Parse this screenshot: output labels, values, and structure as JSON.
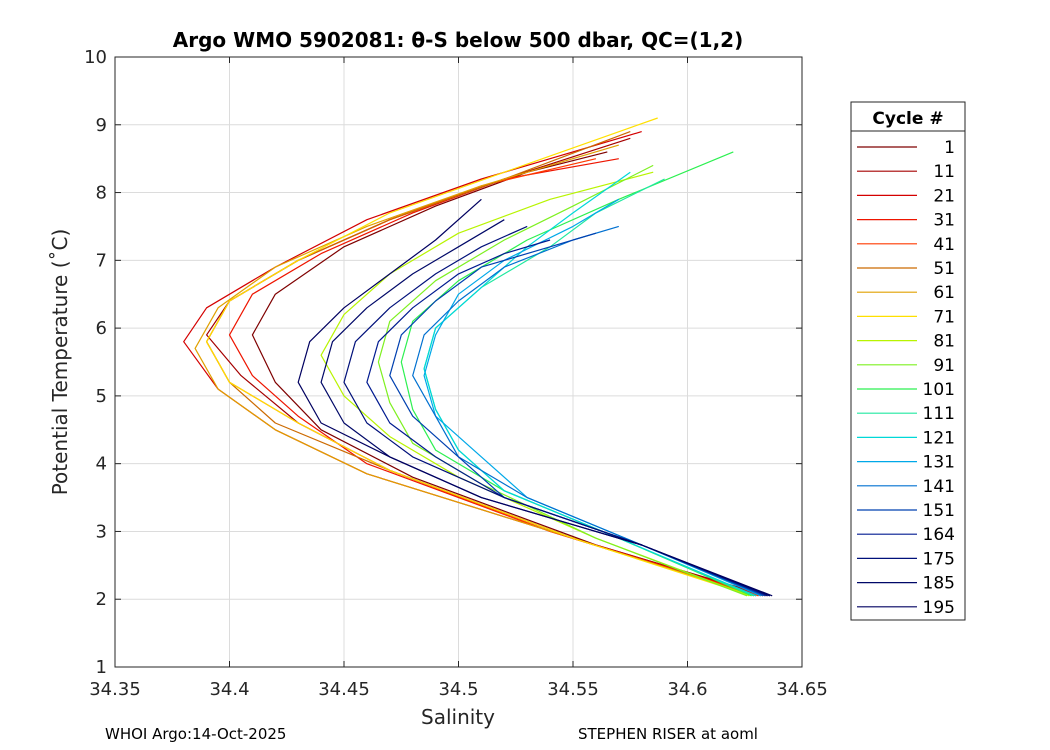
{
  "chart_data": {
    "type": "line",
    "title": "Argo WMO 5902081: θ-S below 500 dbar,  QC=(1,2)",
    "xlabel": "Salinity",
    "ylabel": "Potential Temperature (˚C)",
    "xlim": [
      34.35,
      34.65
    ],
    "ylim": [
      1,
      10
    ],
    "xticks": [
      34.35,
      34.4,
      34.45,
      34.5,
      34.55,
      34.6,
      34.65
    ],
    "xtick_labels": [
      "34.35",
      "34.4",
      "34.45",
      "34.5",
      "34.55",
      "34.6",
      "34.65"
    ],
    "yticks": [
      1,
      2,
      3,
      4,
      5,
      6,
      7,
      8,
      9,
      10
    ],
    "ytick_labels": [
      "1",
      "2",
      "3",
      "4",
      "5",
      "6",
      "7",
      "8",
      "9",
      "10"
    ],
    "grid": true,
    "legend": {
      "title": "Cycle #",
      "position": "outside-right",
      "entries": [
        "1",
        "11",
        "21",
        "31",
        "41",
        "51",
        "61",
        "71",
        "81",
        "91",
        "101",
        "111",
        "121",
        "131",
        "141",
        "151",
        "164",
        "175",
        "185",
        "195"
      ],
      "colors": [
        "#7f0000",
        "#a50000",
        "#d40000",
        "#ee1500",
        "#ff3a00",
        "#cc6a00",
        "#e0a000",
        "#ffe000",
        "#b8f400",
        "#7ef020",
        "#2cf050",
        "#20e8a0",
        "#00d8d8",
        "#00a8e8",
        "#0070d0",
        "#0040b0",
        "#001a90",
        "#00107a",
        "#000868",
        "#000060"
      ]
    },
    "series": [
      {
        "name": "1",
        "color": "#7f0000",
        "x": [
          34.635,
          34.56,
          34.48,
          34.44,
          34.42,
          34.41,
          34.42,
          34.45,
          34.49,
          34.53,
          34.565
        ],
        "y": [
          2.05,
          2.8,
          3.8,
          4.5,
          5.2,
          5.9,
          6.5,
          7.2,
          7.8,
          8.3,
          8.6
        ]
      },
      {
        "name": "11",
        "color": "#a50000",
        "x": [
          34.634,
          34.55,
          34.47,
          34.43,
          34.405,
          34.39,
          34.4,
          34.43,
          34.47,
          34.52,
          34.575
        ],
        "y": [
          2.05,
          2.9,
          3.9,
          4.6,
          5.3,
          5.9,
          6.4,
          7.0,
          7.6,
          8.2,
          8.8
        ]
      },
      {
        "name": "21",
        "color": "#d40000",
        "x": [
          34.633,
          34.55,
          34.46,
          34.42,
          34.395,
          34.38,
          34.39,
          34.42,
          34.46,
          34.51,
          34.58
        ],
        "y": [
          2.05,
          2.9,
          3.85,
          4.5,
          5.1,
          5.8,
          6.3,
          6.9,
          7.6,
          8.2,
          8.9
        ]
      },
      {
        "name": "31",
        "color": "#ee1500",
        "x": [
          34.632,
          34.54,
          34.46,
          34.43,
          34.41,
          34.4,
          34.41,
          34.44,
          34.48,
          34.52,
          34.57
        ],
        "y": [
          2.05,
          3.0,
          4.0,
          4.7,
          5.3,
          5.9,
          6.5,
          7.1,
          7.7,
          8.2,
          8.5
        ]
      },
      {
        "name": "41",
        "color": "#ff3a00",
        "x": [
          34.631,
          34.54,
          34.47,
          34.43,
          34.4,
          34.39,
          34.4,
          34.43,
          34.47,
          34.51,
          34.56
        ],
        "y": [
          2.05,
          3.0,
          3.9,
          4.6,
          5.2,
          5.8,
          6.4,
          7.0,
          7.6,
          8.1,
          8.5
        ]
      },
      {
        "name": "51",
        "color": "#cc6a00",
        "x": [
          34.63,
          34.55,
          34.47,
          34.42,
          34.4,
          34.39,
          34.4,
          34.43,
          34.47,
          34.52,
          34.575
        ],
        "y": [
          2.05,
          2.9,
          3.9,
          4.6,
          5.2,
          5.8,
          6.4,
          7.0,
          7.6,
          8.2,
          8.9
        ]
      },
      {
        "name": "61",
        "color": "#e0a000",
        "x": [
          34.629,
          34.55,
          34.46,
          34.42,
          34.395,
          34.385,
          34.395,
          34.42,
          34.46,
          34.51,
          34.57
        ],
        "y": [
          2.05,
          2.9,
          3.85,
          4.5,
          5.1,
          5.7,
          6.3,
          6.9,
          7.5,
          8.1,
          8.7
        ]
      },
      {
        "name": "71",
        "color": "#ffe000",
        "x": [
          34.628,
          34.55,
          34.47,
          34.43,
          34.4,
          34.39,
          34.4,
          34.43,
          34.47,
          34.52,
          34.587
        ],
        "y": [
          2.05,
          2.9,
          3.9,
          4.6,
          5.2,
          5.8,
          6.4,
          7.0,
          7.7,
          8.3,
          9.1
        ]
      },
      {
        "name": "81",
        "color": "#b8f400",
        "x": [
          34.627,
          34.56,
          34.5,
          34.47,
          34.45,
          34.44,
          34.45,
          34.47,
          34.5,
          34.54,
          34.585
        ],
        "y": [
          2.05,
          2.9,
          3.8,
          4.4,
          5.0,
          5.6,
          6.2,
          6.8,
          7.4,
          7.9,
          8.3
        ]
      },
      {
        "name": "91",
        "color": "#7ef020",
        "x": [
          34.626,
          34.56,
          34.51,
          34.48,
          34.47,
          34.465,
          34.47,
          34.49,
          34.52,
          34.55,
          34.585
        ],
        "y": [
          2.05,
          2.9,
          3.7,
          4.3,
          4.9,
          5.5,
          6.1,
          6.7,
          7.3,
          7.8,
          8.4
        ]
      },
      {
        "name": "101",
        "color": "#2cf050",
        "x": [
          34.628,
          34.57,
          34.52,
          34.49,
          34.48,
          34.475,
          34.48,
          34.5,
          34.53,
          34.57,
          34.62
        ],
        "y": [
          2.05,
          2.9,
          3.6,
          4.2,
          4.8,
          5.5,
          6.1,
          6.7,
          7.3,
          7.9,
          8.6
        ]
      },
      {
        "name": "111",
        "color": "#20e8a0",
        "x": [
          34.629,
          34.57,
          34.52,
          34.5,
          34.49,
          34.485,
          34.49,
          34.51,
          34.54,
          34.56,
          34.59
        ],
        "y": [
          2.05,
          2.9,
          3.6,
          4.2,
          4.8,
          5.4,
          6.0,
          6.6,
          7.2,
          7.7,
          8.2
        ]
      },
      {
        "name": "121",
        "color": "#00d8d8",
        "x": [
          34.63,
          34.57,
          34.52,
          34.5,
          34.49,
          34.485,
          34.49,
          34.51,
          34.53,
          34.55,
          34.575
        ],
        "y": [
          2.05,
          2.9,
          3.6,
          4.2,
          4.8,
          5.4,
          6.0,
          6.6,
          7.2,
          7.7,
          8.3
        ]
      },
      {
        "name": "131",
        "color": "#00a8e8",
        "x": [
          34.632,
          34.58,
          34.53,
          34.51,
          34.49,
          34.485,
          34.49,
          34.5,
          34.52,
          34.55,
          34.57
        ],
        "y": [
          2.05,
          2.8,
          3.5,
          4.1,
          4.7,
          5.3,
          5.9,
          6.5,
          7.0,
          7.5,
          7.9
        ]
      },
      {
        "name": "141",
        "color": "#0070d0",
        "x": [
          34.633,
          34.58,
          34.53,
          34.5,
          34.49,
          34.48,
          34.485,
          34.5,
          34.52,
          34.55,
          34.57
        ],
        "y": [
          2.05,
          2.8,
          3.5,
          4.1,
          4.7,
          5.3,
          5.9,
          6.4,
          6.9,
          7.3,
          7.5
        ]
      },
      {
        "name": "151",
        "color": "#0040b0",
        "x": [
          34.634,
          34.58,
          34.52,
          34.5,
          34.48,
          34.47,
          34.475,
          34.49,
          34.51,
          34.54,
          34.56
        ],
        "y": [
          2.05,
          2.8,
          3.5,
          4.1,
          4.7,
          5.3,
          5.9,
          6.4,
          6.9,
          7.2,
          7.4
        ]
      },
      {
        "name": "164",
        "color": "#001a90",
        "x": [
          34.635,
          34.58,
          34.52,
          34.49,
          34.47,
          34.46,
          34.465,
          34.48,
          34.5,
          34.52,
          34.54
        ],
        "y": [
          2.05,
          2.8,
          3.5,
          4.1,
          4.6,
          5.2,
          5.8,
          6.3,
          6.8,
          7.1,
          7.3
        ]
      },
      {
        "name": "175",
        "color": "#00107a",
        "x": [
          34.636,
          34.58,
          34.52,
          34.48,
          34.46,
          34.45,
          34.455,
          34.47,
          34.49,
          34.51,
          34.53
        ],
        "y": [
          2.05,
          2.8,
          3.5,
          4.1,
          4.6,
          5.2,
          5.8,
          6.3,
          6.8,
          7.2,
          7.5
        ]
      },
      {
        "name": "185",
        "color": "#000868",
        "x": [
          34.636,
          34.58,
          34.51,
          34.47,
          34.45,
          34.44,
          34.445,
          34.46,
          34.48,
          34.5,
          34.52
        ],
        "y": [
          2.05,
          2.8,
          3.5,
          4.1,
          4.6,
          5.2,
          5.8,
          6.3,
          6.8,
          7.2,
          7.6
        ]
      },
      {
        "name": "195",
        "color": "#000060",
        "x": [
          34.637,
          34.58,
          34.51,
          34.47,
          34.44,
          34.43,
          34.435,
          34.45,
          34.47,
          34.49,
          34.51
        ],
        "y": [
          2.05,
          2.8,
          3.5,
          4.1,
          4.6,
          5.2,
          5.8,
          6.3,
          6.8,
          7.3,
          7.9
        ]
      }
    ]
  },
  "footer": {
    "left": "WHOI Argo:14-Oct-2025",
    "right": "STEPHEN RISER at aoml"
  }
}
